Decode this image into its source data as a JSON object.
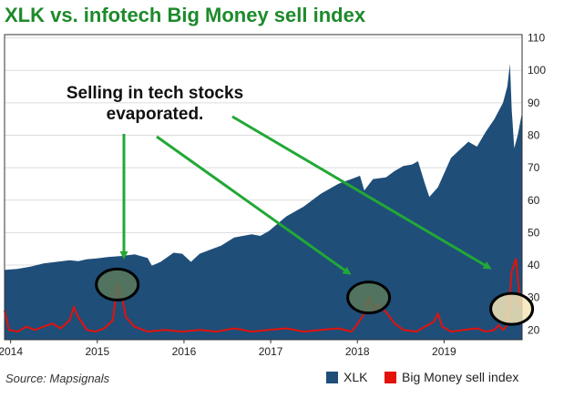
{
  "title": "XLK vs. infotech Big Money sell index",
  "annotation": {
    "line1": "Selling in tech stocks",
    "line2": "evaporated."
  },
  "source": "Source: Mapsignals",
  "colors": {
    "xlk": "#1f4e79",
    "sell": "#e3120b",
    "arrow": "#22a836",
    "title": "#1d8a2b",
    "circle_fill": "#5b7a5b"
  },
  "chart_data": {
    "type": "area",
    "x_ticks": [
      "2014",
      "2015",
      "2016",
      "2017",
      "2018",
      "2019"
    ],
    "y_ticks": [
      "110",
      "100",
      "90",
      "80",
      "70",
      "60",
      "50",
      "40",
      "30",
      "20"
    ],
    "ylim": [
      17,
      111
    ],
    "xlim": [
      2013.95,
      2019.92
    ],
    "legend_position": "bottom-right",
    "series": [
      {
        "name": "XLK",
        "type": "area",
        "x": [
          2013.95,
          2014.1,
          2014.25,
          2014.4,
          2014.55,
          2014.7,
          2014.8,
          2014.9,
          2015.0,
          2015.15,
          2015.3,
          2015.45,
          2015.6,
          2015.65,
          2015.75,
          2015.9,
          2016.0,
          2016.1,
          2016.2,
          2016.3,
          2016.45,
          2016.6,
          2016.8,
          2016.9,
          2017.0,
          2017.2,
          2017.4,
          2017.6,
          2017.8,
          2017.95,
          2018.05,
          2018.1,
          2018.2,
          2018.35,
          2018.45,
          2018.55,
          2018.65,
          2018.72,
          2018.8,
          2018.85,
          2018.95,
          2019.1,
          2019.3,
          2019.4,
          2019.5,
          2019.6,
          2019.7,
          2019.75,
          2019.78,
          2019.8,
          2019.83,
          2019.87,
          2019.92
        ],
        "values": [
          38.5,
          38.8,
          39.5,
          40.5,
          41,
          41.5,
          41.2,
          41.8,
          42,
          42.5,
          42.8,
          43.3,
          42.2,
          39.8,
          41,
          43.8,
          43.5,
          41,
          43.5,
          44.5,
          46,
          48.5,
          49.5,
          49,
          50.5,
          55,
          58,
          62,
          65,
          66.5,
          67.5,
          63,
          66.5,
          67,
          69,
          70.5,
          71,
          72,
          65,
          61,
          64,
          73,
          78,
          76.5,
          81,
          85,
          90,
          95,
          102,
          88,
          76,
          80,
          87
        ]
      },
      {
        "name": "Big Money sell index",
        "type": "line",
        "x": [
          2013.95,
          2014.0,
          2014.1,
          2014.2,
          2014.3,
          2014.4,
          2014.5,
          2014.6,
          2014.7,
          2014.75,
          2014.8,
          2014.85,
          2014.9,
          2015.0,
          2015.1,
          2015.2,
          2015.25,
          2015.3,
          2015.35,
          2015.45,
          2015.6,
          2015.8,
          2016.0,
          2016.2,
          2016.4,
          2016.6,
          2016.8,
          2017.0,
          2017.2,
          2017.4,
          2017.6,
          2017.8,
          2017.95,
          2018.0,
          2018.1,
          2018.15,
          2018.2,
          2018.25,
          2018.35,
          2018.45,
          2018.55,
          2018.7,
          2018.8,
          2018.9,
          2018.95,
          2019.0,
          2019.1,
          2019.25,
          2019.4,
          2019.5,
          2019.6,
          2019.65,
          2019.7,
          2019.75,
          2019.8,
          2019.85,
          2019.9
        ],
        "values": [
          26,
          20,
          19.5,
          21,
          20,
          21,
          22,
          20.5,
          23,
          27,
          24,
          22,
          20,
          19.5,
          20.5,
          23,
          34,
          31,
          24,
          21,
          19.5,
          20,
          19.5,
          20,
          19.5,
          20.5,
          19.5,
          20,
          20.5,
          19.5,
          20,
          20.5,
          19.5,
          21,
          25,
          30,
          26,
          28,
          25.5,
          22,
          20,
          19.5,
          21,
          22.5,
          25,
          21,
          19.5,
          20,
          20.5,
          19.5,
          20,
          21.5,
          20,
          21.5,
          38,
          42,
          27
        ]
      }
    ]
  }
}
